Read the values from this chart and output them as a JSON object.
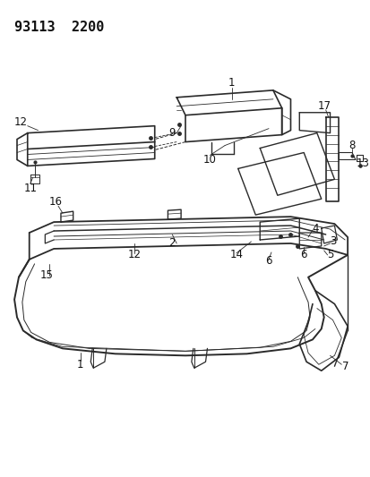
{
  "title_text": "93113  2200",
  "bg_color": "#ffffff",
  "line_color": "#2a2a2a",
  "label_color": "#111111",
  "label_fontsize": 8.5,
  "fig_width": 4.14,
  "fig_height": 5.33,
  "dpi": 100
}
